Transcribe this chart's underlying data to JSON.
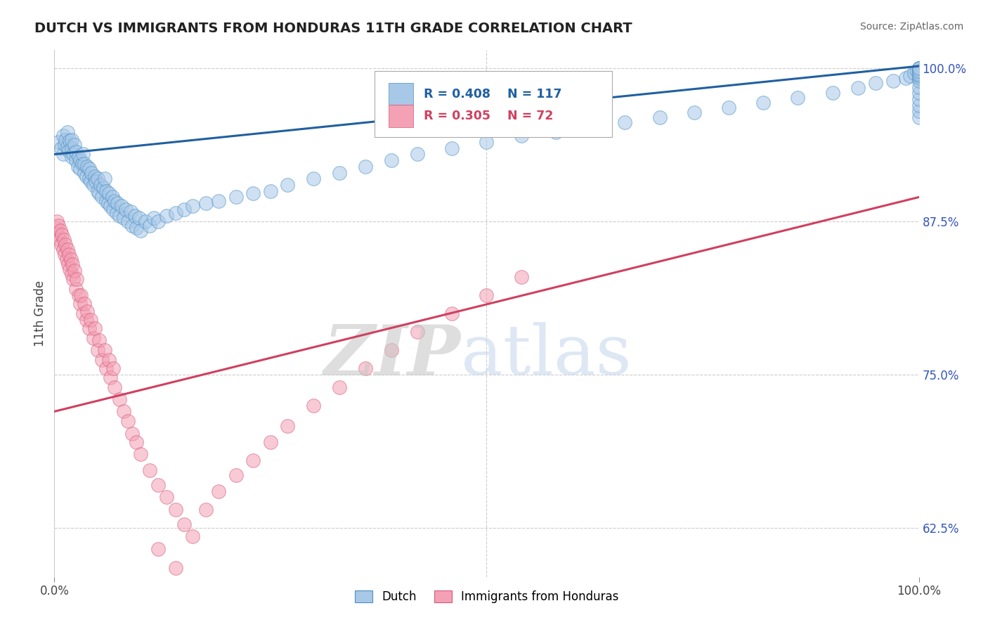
{
  "title": "DUTCH VS IMMIGRANTS FROM HONDURAS 11TH GRADE CORRELATION CHART",
  "source_text": "Source: ZipAtlas.com",
  "ylabel": "11th Grade",
  "xlim": [
    0.0,
    1.0
  ],
  "ylim": [
    0.585,
    1.015
  ],
  "yticks": [
    0.625,
    0.75,
    0.875,
    1.0
  ],
  "ytick_labels": [
    "62.5%",
    "75.0%",
    "87.5%",
    "100.0%"
  ],
  "xticks": [
    0.0,
    1.0
  ],
  "xtick_labels": [
    "0.0%",
    "100.0%"
  ],
  "legend_blue_r": "R = 0.408",
  "legend_blue_n": "N = 117",
  "legend_pink_r": "R = 0.305",
  "legend_pink_n": "N = 72",
  "legend_label_blue": "Dutch",
  "legend_label_pink": "Immigrants from Honduras",
  "blue_color": "#a8c8e8",
  "pink_color": "#f4a0b5",
  "blue_edge_color": "#4a90c4",
  "pink_edge_color": "#d45a78",
  "blue_line_color": "#2060a0",
  "pink_line_color": "#d04060",
  "title_color": "#222222",
  "background_color": "#ffffff",
  "grid_color": "#cccccc",
  "blue_line_y_start": 0.93,
  "blue_line_y_end": 1.002,
  "pink_line_y_start": 0.72,
  "pink_line_y_end": 0.895,
  "blue_scatter_x": [
    0.005,
    0.008,
    0.01,
    0.01,
    0.012,
    0.013,
    0.015,
    0.015,
    0.017,
    0.018,
    0.02,
    0.02,
    0.02,
    0.022,
    0.023,
    0.025,
    0.025,
    0.027,
    0.028,
    0.03,
    0.03,
    0.032,
    0.033,
    0.035,
    0.035,
    0.037,
    0.038,
    0.04,
    0.04,
    0.042,
    0.043,
    0.045,
    0.047,
    0.048,
    0.05,
    0.05,
    0.052,
    0.053,
    0.055,
    0.057,
    0.058,
    0.06,
    0.06,
    0.062,
    0.063,
    0.065,
    0.067,
    0.068,
    0.07,
    0.072,
    0.073,
    0.075,
    0.078,
    0.08,
    0.083,
    0.085,
    0.088,
    0.09,
    0.093,
    0.095,
    0.098,
    0.1,
    0.105,
    0.11,
    0.115,
    0.12,
    0.13,
    0.14,
    0.15,
    0.16,
    0.175,
    0.19,
    0.21,
    0.23,
    0.25,
    0.27,
    0.3,
    0.33,
    0.36,
    0.39,
    0.42,
    0.46,
    0.5,
    0.54,
    0.58,
    0.62,
    0.66,
    0.7,
    0.74,
    0.78,
    0.82,
    0.86,
    0.9,
    0.93,
    0.95,
    0.97,
    0.985,
    0.99,
    0.995,
    0.998,
    1.0,
    1.0,
    1.0,
    1.0,
    1.0,
    1.0,
    1.0,
    1.0,
    1.0,
    1.0,
    1.0,
    1.0,
    1.0,
    1.0,
    1.0,
    1.0,
    1.0
  ],
  "blue_scatter_y": [
    0.94,
    0.935,
    0.93,
    0.945,
    0.938,
    0.942,
    0.936,
    0.948,
    0.933,
    0.941,
    0.928,
    0.935,
    0.942,
    0.93,
    0.938,
    0.925,
    0.932,
    0.92,
    0.928,
    0.918,
    0.925,
    0.922,
    0.93,
    0.915,
    0.922,
    0.912,
    0.92,
    0.91,
    0.918,
    0.908,
    0.915,
    0.905,
    0.912,
    0.908,
    0.9,
    0.91,
    0.898,
    0.905,
    0.895,
    0.903,
    0.91,
    0.892,
    0.9,
    0.89,
    0.898,
    0.888,
    0.895,
    0.885,
    0.892,
    0.882,
    0.89,
    0.88,
    0.888,
    0.878,
    0.885,
    0.875,
    0.883,
    0.872,
    0.88,
    0.87,
    0.878,
    0.868,
    0.875,
    0.872,
    0.878,
    0.875,
    0.88,
    0.882,
    0.885,
    0.888,
    0.89,
    0.892,
    0.895,
    0.898,
    0.9,
    0.905,
    0.91,
    0.915,
    0.92,
    0.925,
    0.93,
    0.935,
    0.94,
    0.945,
    0.948,
    0.952,
    0.956,
    0.96,
    0.964,
    0.968,
    0.972,
    0.976,
    0.98,
    0.984,
    0.988,
    0.99,
    0.992,
    0.994,
    0.996,
    0.998,
    0.96,
    0.965,
    0.97,
    0.975,
    0.98,
    0.985,
    0.99,
    0.992,
    0.994,
    0.996,
    0.998,
    1.0,
    1.0,
    1.0,
    0.995,
    0.998,
    1.0
  ],
  "pink_scatter_x": [
    0.002,
    0.003,
    0.004,
    0.005,
    0.006,
    0.007,
    0.008,
    0.009,
    0.01,
    0.011,
    0.012,
    0.013,
    0.014,
    0.015,
    0.016,
    0.017,
    0.018,
    0.019,
    0.02,
    0.021,
    0.022,
    0.023,
    0.025,
    0.026,
    0.028,
    0.03,
    0.031,
    0.033,
    0.035,
    0.037,
    0.038,
    0.04,
    0.042,
    0.045,
    0.047,
    0.05,
    0.052,
    0.055,
    0.058,
    0.06,
    0.063,
    0.065,
    0.068,
    0.07,
    0.075,
    0.08,
    0.085,
    0.09,
    0.095,
    0.1,
    0.11,
    0.12,
    0.13,
    0.14,
    0.15,
    0.16,
    0.175,
    0.19,
    0.21,
    0.23,
    0.25,
    0.27,
    0.3,
    0.33,
    0.36,
    0.39,
    0.42,
    0.46,
    0.5,
    0.54,
    0.12,
    0.14
  ],
  "pink_scatter_y": [
    0.87,
    0.875,
    0.865,
    0.872,
    0.86,
    0.868,
    0.856,
    0.864,
    0.852,
    0.86,
    0.848,
    0.856,
    0.844,
    0.852,
    0.84,
    0.848,
    0.836,
    0.844,
    0.832,
    0.84,
    0.828,
    0.835,
    0.82,
    0.828,
    0.815,
    0.808,
    0.815,
    0.8,
    0.808,
    0.795,
    0.802,
    0.788,
    0.795,
    0.78,
    0.788,
    0.77,
    0.778,
    0.762,
    0.77,
    0.755,
    0.762,
    0.748,
    0.755,
    0.74,
    0.73,
    0.72,
    0.712,
    0.702,
    0.695,
    0.685,
    0.672,
    0.66,
    0.65,
    0.64,
    0.628,
    0.618,
    0.64,
    0.655,
    0.668,
    0.68,
    0.695,
    0.708,
    0.725,
    0.74,
    0.755,
    0.77,
    0.785,
    0.8,
    0.815,
    0.83,
    0.608,
    0.592
  ]
}
